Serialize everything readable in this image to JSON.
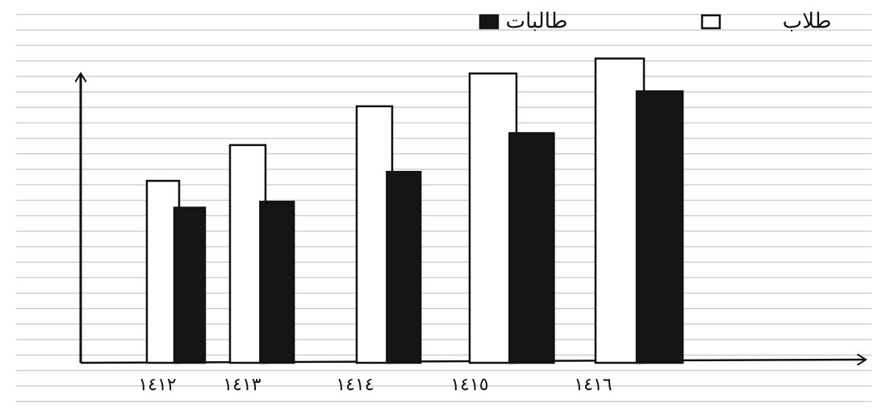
{
  "chart_data": {
    "type": "bar",
    "categories": [
      "١٤١٢",
      "١٤١٣",
      "١٤١٤",
      "١٤١٥",
      "١٤١٦"
    ],
    "series": [
      {
        "name": "طلاب",
        "color": "#ffffff",
        "values": [
          6.1,
          7.3,
          8.6,
          9.7,
          10.2
        ]
      },
      {
        "name": "طالبات",
        "color": "#151515",
        "values": [
          5.2,
          5.4,
          6.4,
          7.7,
          9.1
        ]
      }
    ],
    "ylim": [
      0,
      12
    ]
  }
}
